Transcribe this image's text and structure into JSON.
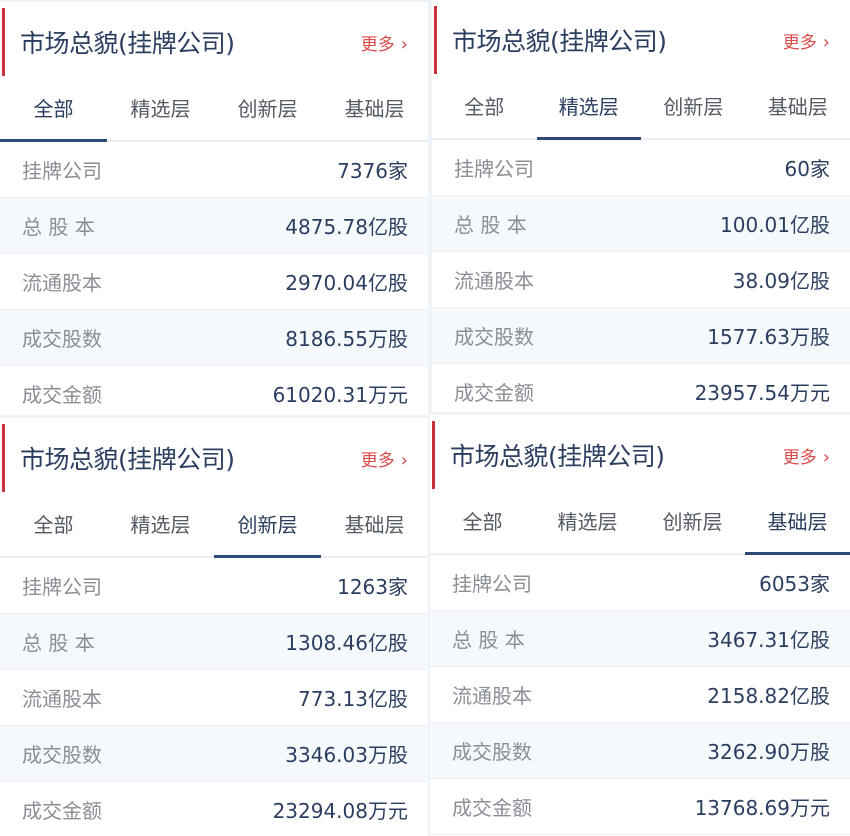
{
  "colors": {
    "accent_bar": "#c8303c",
    "title": "#2c3e60",
    "more": "#d94a4a",
    "active_underline": "#2c4a75",
    "row_alt": "#f5f9fc"
  },
  "panels": [
    {
      "title": "市场总貌(挂牌公司)",
      "more": "更多",
      "more_icon": "chevron-right-icon",
      "active_tab": 0,
      "tabs": [
        "全部",
        "精选层",
        "创新层",
        "基础层"
      ],
      "rows": [
        {
          "label": "挂牌公司",
          "value": "7376家"
        },
        {
          "label": "总 股 本",
          "value": "4875.78亿股"
        },
        {
          "label": "流通股本",
          "value": "2970.04亿股"
        },
        {
          "label": "成交股数",
          "value": "8186.55万股"
        },
        {
          "label": "成交金额",
          "value": "61020.31万元"
        }
      ]
    },
    {
      "title": "市场总貌(挂牌公司)",
      "more": "更多",
      "more_icon": "chevron-right-icon",
      "active_tab": 1,
      "tabs": [
        "全部",
        "精选层",
        "创新层",
        "基础层"
      ],
      "rows": [
        {
          "label": "挂牌公司",
          "value": "60家"
        },
        {
          "label": "总 股 本",
          "value": "100.01亿股"
        },
        {
          "label": "流通股本",
          "value": "38.09亿股"
        },
        {
          "label": "成交股数",
          "value": "1577.63万股"
        },
        {
          "label": "成交金额",
          "value": "23957.54万元"
        }
      ]
    },
    {
      "title": "市场总貌(挂牌公司)",
      "more": "更多",
      "more_icon": "chevron-right-icon",
      "active_tab": 2,
      "tabs": [
        "全部",
        "精选层",
        "创新层",
        "基础层"
      ],
      "rows": [
        {
          "label": "挂牌公司",
          "value": "1263家"
        },
        {
          "label": "总 股 本",
          "value": "1308.46亿股"
        },
        {
          "label": "流通股本",
          "value": "773.13亿股"
        },
        {
          "label": "成交股数",
          "value": "3346.03万股"
        },
        {
          "label": "成交金额",
          "value": "23294.08万元"
        }
      ]
    },
    {
      "title": "市场总貌(挂牌公司)",
      "more": "更多",
      "more_icon": "chevron-right-icon",
      "active_tab": 3,
      "tabs": [
        "全部",
        "精选层",
        "创新层",
        "基础层"
      ],
      "rows": [
        {
          "label": "挂牌公司",
          "value": "6053家"
        },
        {
          "label": "总 股 本",
          "value": "3467.31亿股"
        },
        {
          "label": "流通股本",
          "value": "2158.82亿股"
        },
        {
          "label": "成交股数",
          "value": "3262.90万股"
        },
        {
          "label": "成交金额",
          "value": "13768.69万元"
        }
      ]
    }
  ]
}
